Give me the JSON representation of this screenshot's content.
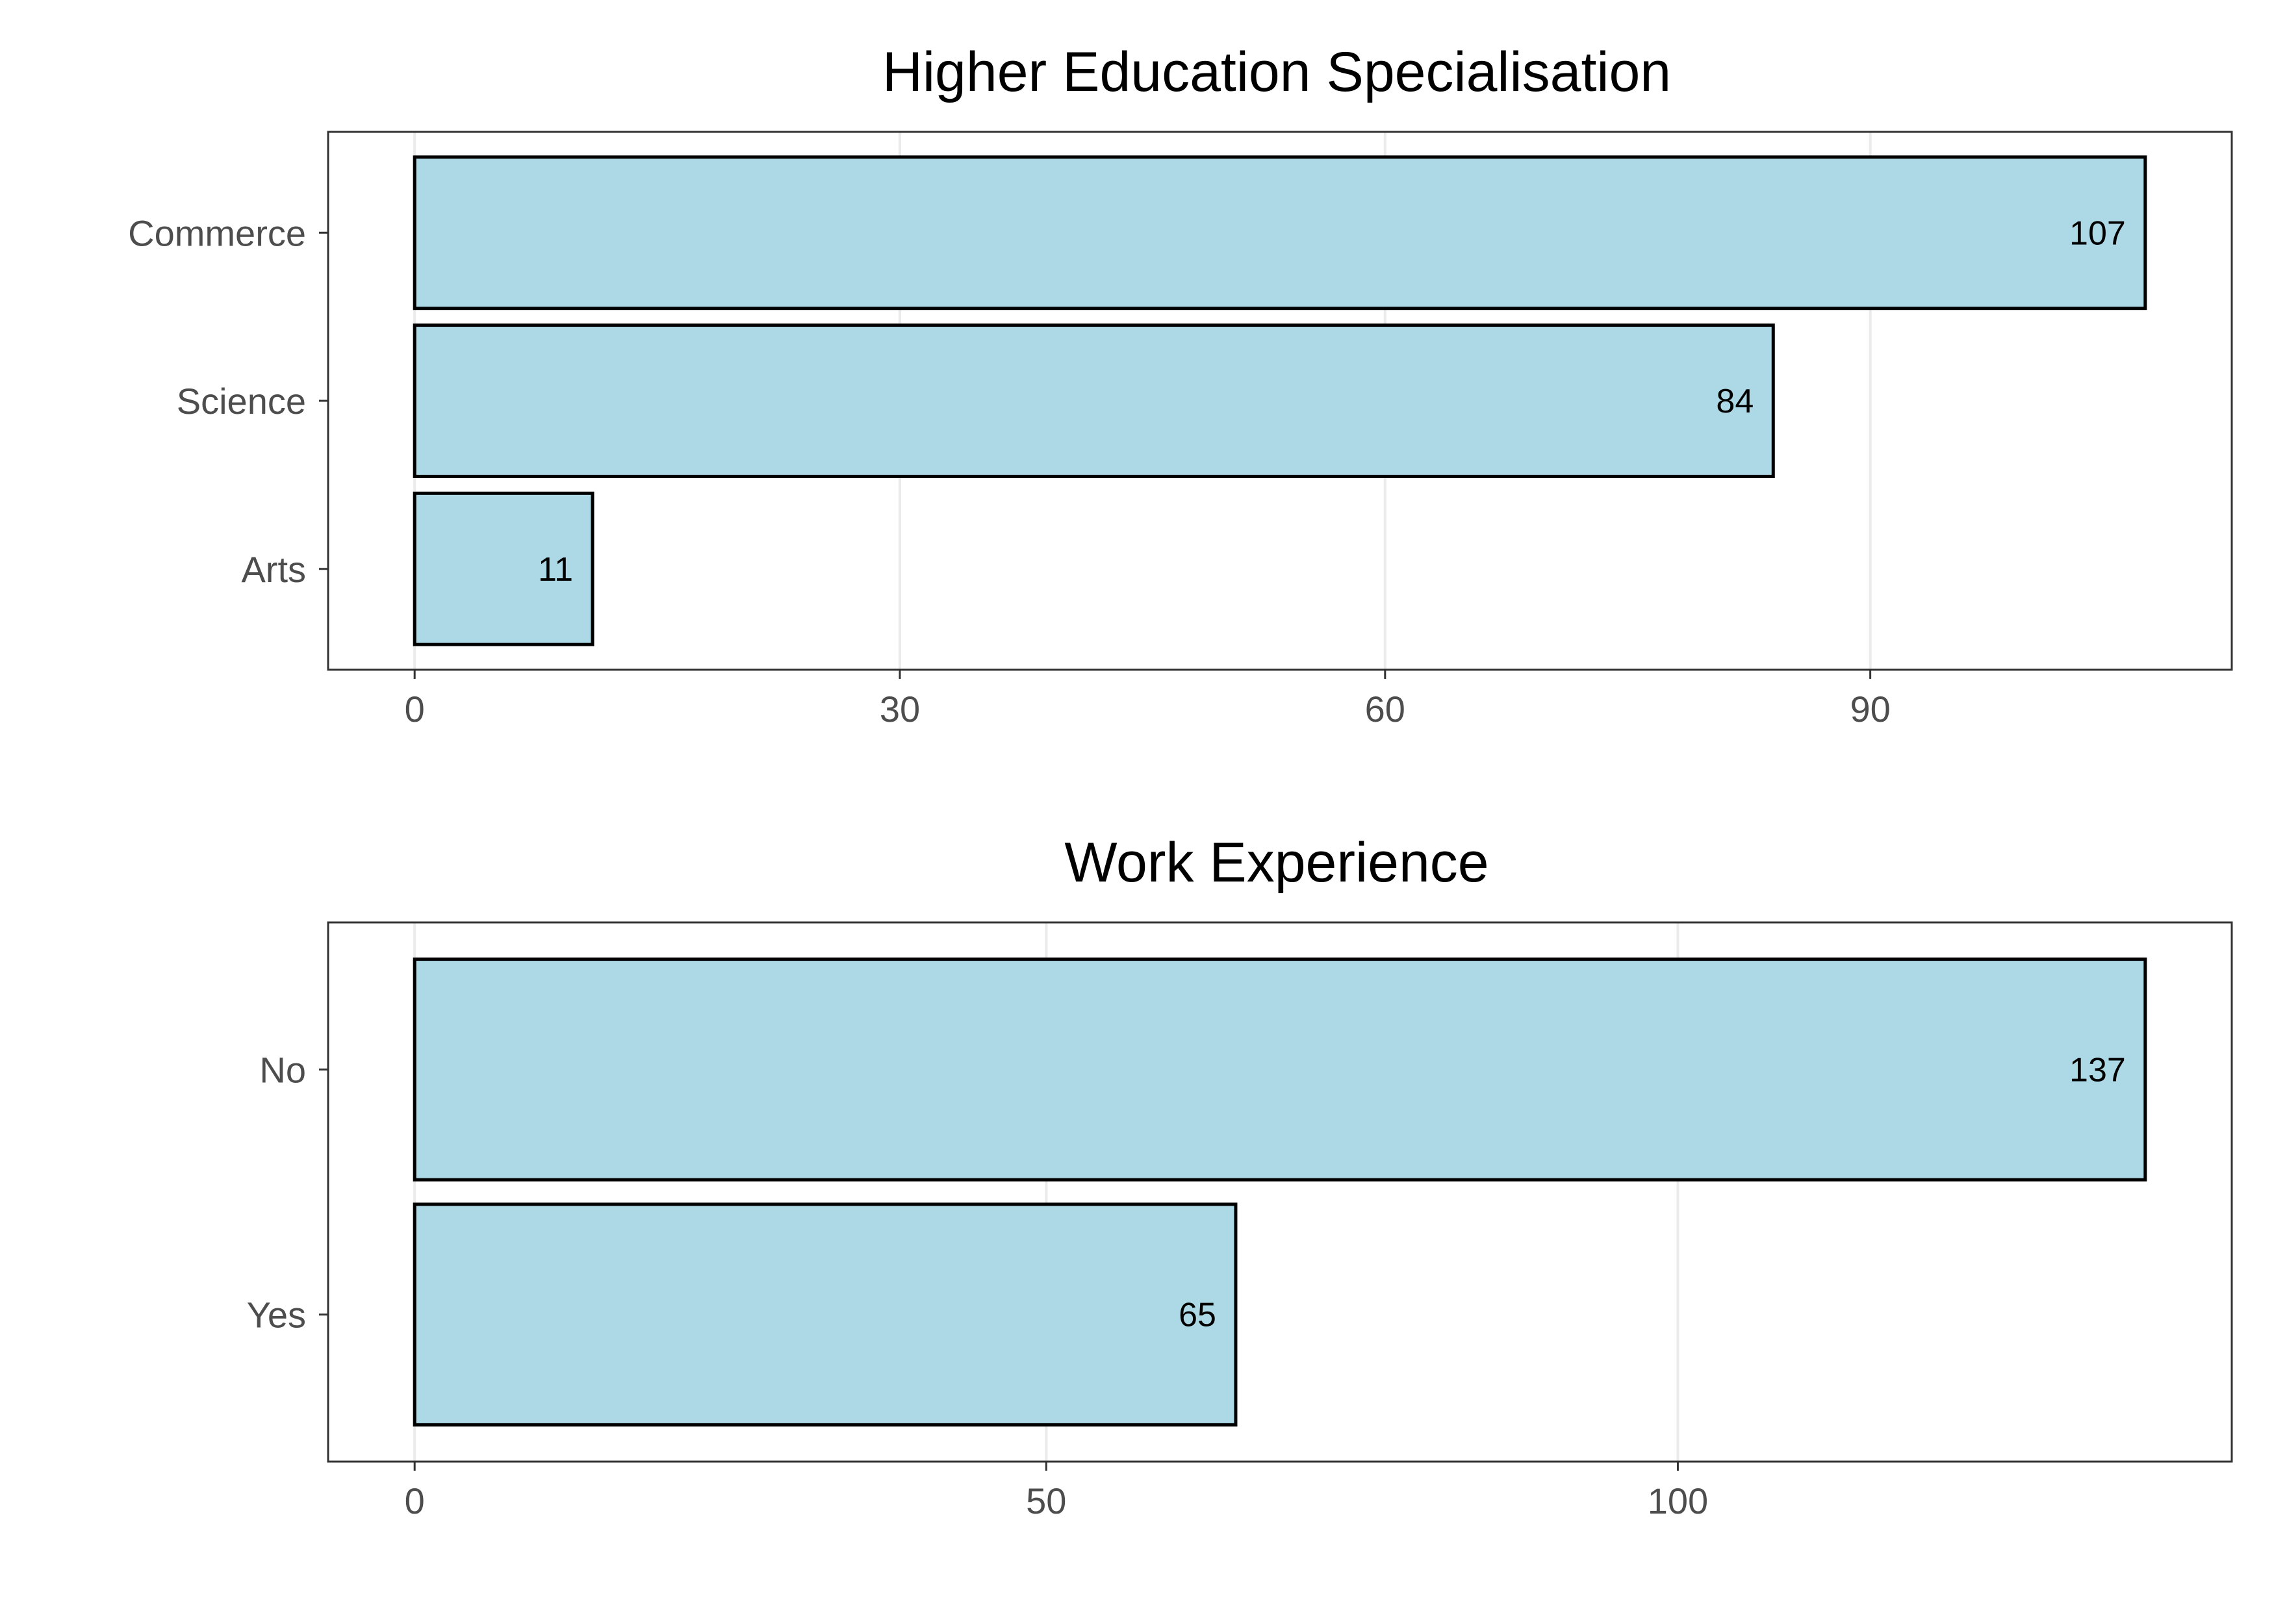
{
  "chart_data": [
    {
      "type": "bar",
      "orientation": "horizontal",
      "title": "Higher Education Specialisation",
      "categories": [
        "Commerce",
        "Science",
        "Arts"
      ],
      "values": [
        107,
        84,
        11
      ],
      "xticks": [
        0,
        30,
        60,
        90
      ],
      "xlim": [
        -5.35,
        112.35
      ],
      "grid": true,
      "bar_color": "#ADD8E6",
      "bar_outline": "#000000"
    },
    {
      "type": "bar",
      "orientation": "horizontal",
      "title": "Work Experience",
      "categories": [
        "No",
        "Yes"
      ],
      "values": [
        137,
        65
      ],
      "xticks": [
        0,
        50,
        100
      ],
      "xlim": [
        -6.85,
        143.85
      ],
      "grid": true,
      "bar_color": "#ADD8E6",
      "bar_outline": "#000000"
    }
  ]
}
